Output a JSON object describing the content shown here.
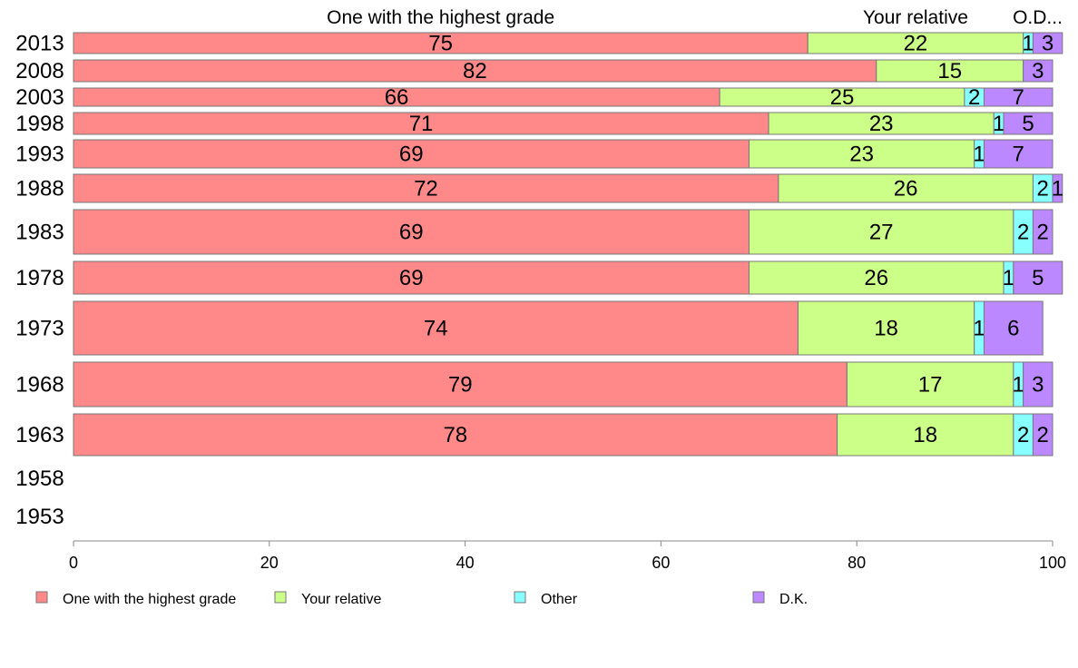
{
  "chart_data": {
    "type": "bar",
    "orientation": "horizontal",
    "stacked": true,
    "title": "",
    "xlabel": "",
    "ylabel": "",
    "xlim": [
      0,
      100
    ],
    "x_ticks": [
      0,
      20,
      40,
      60,
      80,
      100
    ],
    "grid": false,
    "legend_position": "bottom",
    "categories": [
      "2013",
      "2008",
      "2003",
      "1998",
      "1993",
      "1988",
      "1983",
      "1978",
      "1973",
      "1968",
      "1963",
      "1958",
      "1953"
    ],
    "series": [
      {
        "name": "One with the highest grade",
        "header": "One with the highest grade",
        "color": "#ff8888",
        "values": [
          75,
          82,
          66,
          71,
          69,
          72,
          69,
          69,
          74,
          79,
          78,
          null,
          null
        ]
      },
      {
        "name": "Your relative",
        "header": "Your relative",
        "color": "#ccff88",
        "values": [
          22,
          15,
          25,
          23,
          23,
          26,
          27,
          26,
          18,
          17,
          18,
          null,
          null
        ]
      },
      {
        "name": "Other",
        "header": "O...",
        "color": "#88ffff",
        "values": [
          1,
          0,
          2,
          1,
          1,
          2,
          2,
          1,
          1,
          1,
          2,
          null,
          null
        ]
      },
      {
        "name": "D.K.",
        "header": "D...",
        "color": "#bb88ff",
        "values": [
          3,
          3,
          7,
          5,
          7,
          1,
          2,
          5,
          6,
          3,
          2,
          null,
          null
        ]
      }
    ]
  }
}
